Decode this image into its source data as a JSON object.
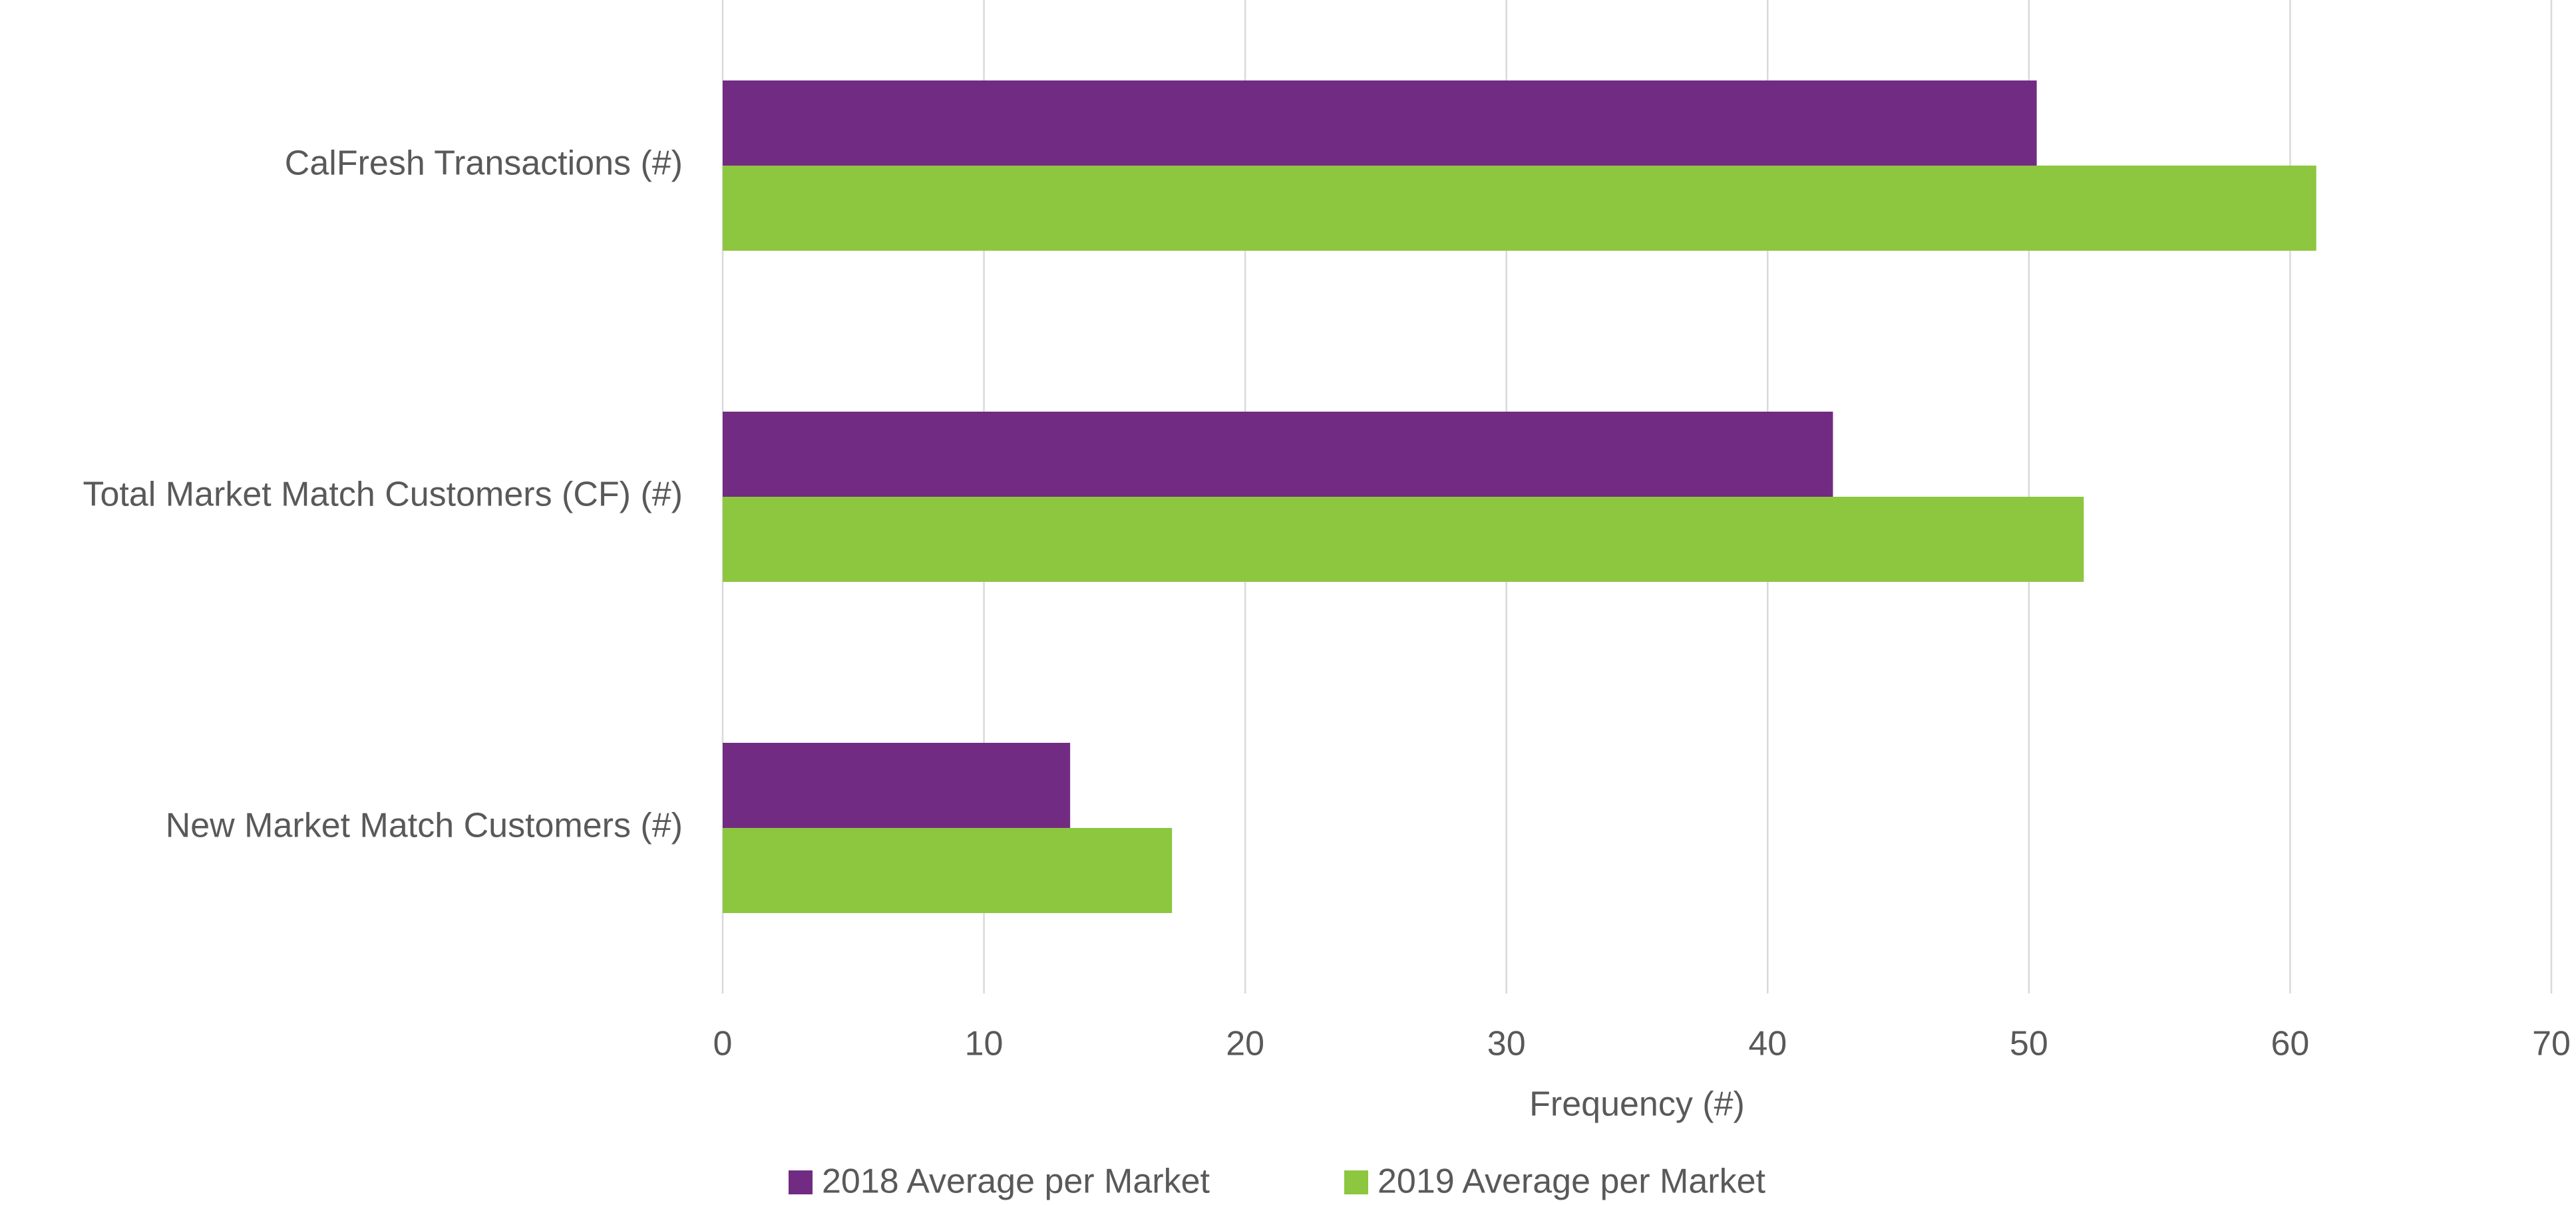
{
  "chart_data": {
    "type": "bar",
    "orientation": "horizontal",
    "categories": [
      "CalFresh Transactions (#)",
      "Total Market Match Customers (CF) (#)",
      "New Market Match Customers (#)"
    ],
    "series": [
      {
        "name": "2018 Average per Market",
        "color": "#722b82",
        "values": [
          50.3,
          42.5,
          13.3
        ]
      },
      {
        "name": "2019 Average per Market",
        "color": "#8dc63f",
        "values": [
          61.0,
          52.1,
          17.2
        ]
      }
    ],
    "xlabel": "Frequency (#)",
    "xlim": [
      0,
      70
    ],
    "xticks": [
      0,
      10,
      20,
      30,
      40,
      50,
      60,
      70
    ],
    "grid": true,
    "legend": "bottom"
  }
}
